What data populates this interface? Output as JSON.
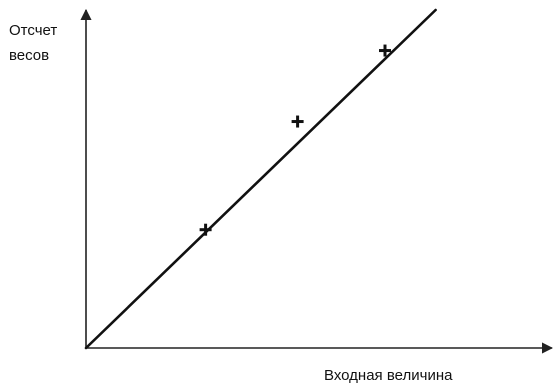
{
  "chart_data": {
    "type": "scatter",
    "title": "",
    "xlabel": "Входная величина",
    "ylabel_lines": [
      "Отсчет",
      "весов"
    ],
    "xlim": [
      0,
      100
    ],
    "ylim": [
      0,
      100
    ],
    "grid": false,
    "axis_ticks": false,
    "series": [
      {
        "kind": "line",
        "x": [
          0,
          76
        ],
        "y": [
          0,
          100
        ]
      },
      {
        "kind": "points",
        "marker": "plus",
        "x": [
          26,
          46,
          65
        ],
        "y": [
          35,
          67,
          88
        ]
      }
    ]
  },
  "colors": {
    "axis": "#222222",
    "line": "#111111",
    "marker": "#111111",
    "text": "#111111"
  }
}
